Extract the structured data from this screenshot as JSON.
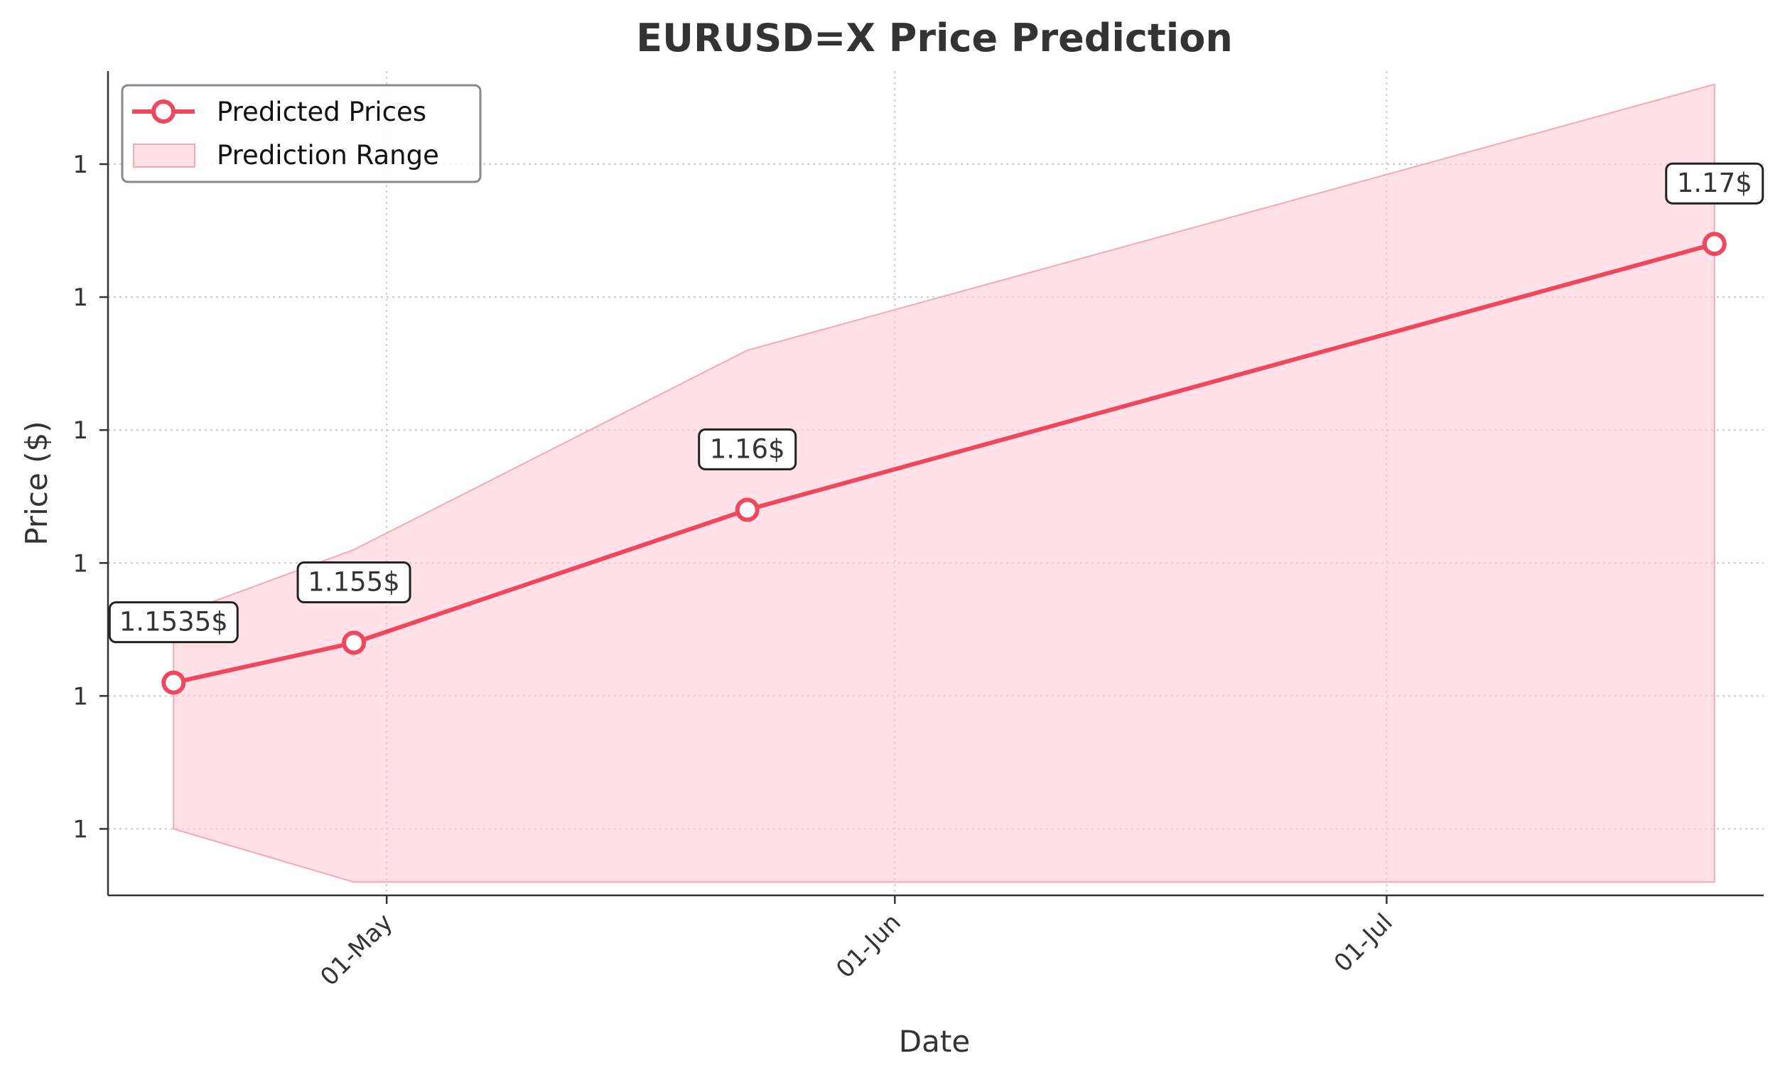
{
  "chart_data": {
    "type": "line",
    "title": "EURUSD=X Price Prediction",
    "xlabel": "Date",
    "ylabel": "Price ($)",
    "x_ticks": [
      "01-May",
      "01-Jun",
      "01-Jul"
    ],
    "y_tick_labels": [
      "1",
      "1",
      "1",
      "1",
      "1",
      "1"
    ],
    "grid": true,
    "legend_position": "top-left",
    "colors": {
      "line": "#f0475f",
      "band": "#ffc9d3",
      "text": "#333333"
    },
    "series": [
      {
        "name": "Predicted Prices",
        "x": [
          "2025-04-18",
          "2025-04-29",
          "2025-05-23",
          "2025-07-21"
        ],
        "values": [
          1.1535,
          1.155,
          1.16,
          1.17
        ],
        "labels": [
          "1.1535$",
          "1.155$",
          "1.16$",
          "1.17$"
        ]
      }
    ],
    "range_band": {
      "name": "Prediction Range",
      "x": [
        "2025-04-18",
        "2025-04-29",
        "2025-05-23",
        "2025-07-21"
      ],
      "lower": [
        1.148,
        1.146,
        1.146,
        1.146
      ],
      "upper": [
        1.156,
        1.1585,
        1.166,
        1.176
      ]
    }
  }
}
